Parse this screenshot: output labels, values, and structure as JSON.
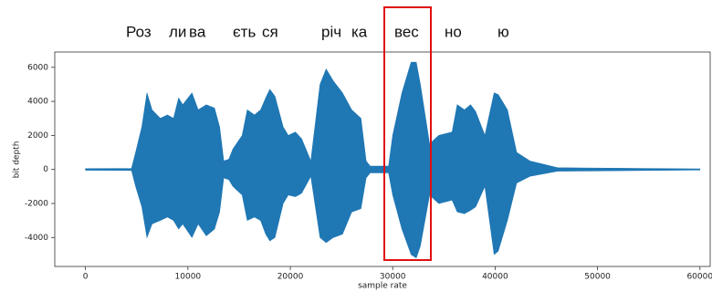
{
  "syllables": [
    "Роз",
    "ли",
    "ва",
    "єть",
    "ся",
    "річ",
    "ка",
    "вес",
    "но",
    "ю"
  ],
  "chart_data": {
    "type": "waveform",
    "xlabel": "sample rate",
    "ylabel": "bit depth",
    "color": "#1f77b4",
    "xlim": [
      -3000,
      61000
    ],
    "ylim": [
      -5700,
      6900
    ],
    "xticks": [
      0,
      10000,
      20000,
      30000,
      40000,
      50000,
      60000
    ],
    "yticks": [
      -4000,
      -2000,
      0,
      2000,
      4000,
      6000
    ],
    "x": [
      0,
      4500,
      4900,
      5500,
      6000,
      6500,
      7300,
      8000,
      8600,
      9100,
      9500,
      10400,
      11000,
      11800,
      12600,
      13100,
      13500,
      14000,
      14400,
      15300,
      15800,
      16500,
      17100,
      17600,
      18000,
      18500,
      19300,
      19800,
      20500,
      21100,
      22000,
      22900,
      23500,
      24200,
      25100,
      26000,
      26900,
      27400,
      27800,
      29600,
      30000,
      30900,
      31800,
      32300,
      32700,
      33600,
      34500,
      35800,
      36300,
      37000,
      37600,
      38100,
      39000,
      39900,
      40300,
      41200,
      42100,
      43400,
      46100,
      60000
    ],
    "upper": [
      50,
      60,
      1000,
      2500,
      4500,
      3500,
      3000,
      3200,
      3000,
      4200,
      3800,
      4500,
      3500,
      3800,
      3600,
      2500,
      500,
      600,
      1200,
      2000,
      3500,
      3200,
      3500,
      4200,
      4700,
      4300,
      2500,
      2000,
      2200,
      1800,
      500,
      5000,
      5900,
      5200,
      4500,
      3500,
      3000,
      500,
      200,
      200,
      2000,
      4500,
      6300,
      6300,
      5000,
      1500,
      2000,
      2200,
      3800,
      3500,
      3800,
      3400,
      2000,
      4500,
      4400,
      3500,
      1000,
      500,
      100,
      30
    ],
    "lower": [
      -50,
      -60,
      -1000,
      -2200,
      -4000,
      -3200,
      -3000,
      -2800,
      -3000,
      -3500,
      -3200,
      -4000,
      -3200,
      -3900,
      -3500,
      -2500,
      -500,
      -600,
      -1000,
      -1500,
      -3000,
      -2800,
      -3000,
      -3800,
      -4200,
      -4000,
      -2000,
      -1500,
      -1600,
      -1400,
      -400,
      -4000,
      -4300,
      -4000,
      -3800,
      -2500,
      -2300,
      -500,
      -200,
      -200,
      -1500,
      -3500,
      -5000,
      -5200,
      -4500,
      -1500,
      -2000,
      -1800,
      -2500,
      -2600,
      -2400,
      -2200,
      -1000,
      -5000,
      -4800,
      -3000,
      -800,
      -400,
      -100,
      -30
    ]
  }
}
